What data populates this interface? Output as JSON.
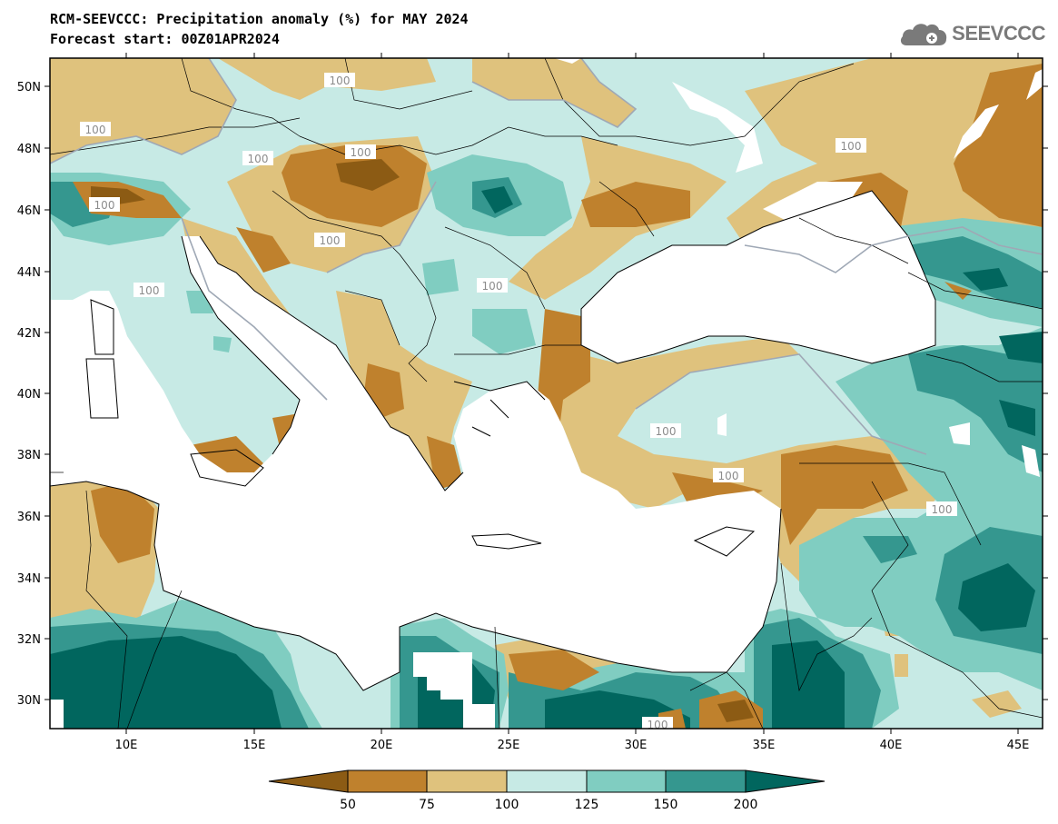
{
  "title": {
    "line1": "RCM-SEEVCCC: Precipitation anomaly (%) for MAY 2024",
    "line2": "Forecast start: 00Z01APR2024"
  },
  "logo": {
    "text": "SEEVCCC",
    "icon": "cloud-logo-icon"
  },
  "map": {
    "y_ticks": [
      "50N",
      "48N",
      "46N",
      "44N",
      "42N",
      "40N",
      "38N",
      "36N",
      "34N",
      "32N",
      "30N"
    ],
    "x_ticks": [
      "10E",
      "15E",
      "20E",
      "25E",
      "30E",
      "35E",
      "40E",
      "45E"
    ],
    "contour_label": "100"
  },
  "colorbar": {
    "labels": [
      "50",
      "75",
      "100",
      "125",
      "150",
      "200"
    ],
    "colors": [
      "#8c5b14",
      "#bf812d",
      "#dfc27d",
      "#c7eae5",
      "#80cdc1",
      "#35978f",
      "#01665e"
    ]
  }
}
